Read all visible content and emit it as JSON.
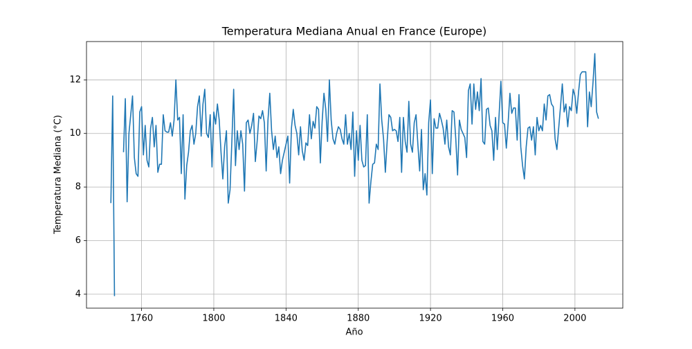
{
  "chart_data": {
    "type": "line",
    "title": "Temperatura Mediana Anual en France (Europe)",
    "x_label": "Año",
    "y_label": "Temperatura Mediana (°C)",
    "color": "#1f77b4",
    "grid": true,
    "xlim": [
      1729.5,
      2026.5
    ],
    "ylim": [
      3.48,
      13.43
    ],
    "xticks": [
      1760,
      1800,
      1840,
      1880,
      1920,
      1960,
      2000
    ],
    "yticks": [
      4,
      6,
      8,
      10,
      12
    ],
    "x": [
      1743,
      1744,
      1745,
      1746,
      1747,
      1748,
      1749,
      1750,
      1751,
      1752,
      1753,
      1754,
      1755,
      1756,
      1757,
      1758,
      1759,
      1760,
      1761,
      1762,
      1763,
      1764,
      1765,
      1766,
      1767,
      1768,
      1769,
      1770,
      1771,
      1772,
      1773,
      1774,
      1775,
      1776,
      1777,
      1778,
      1779,
      1780,
      1781,
      1782,
      1783,
      1784,
      1785,
      1786,
      1787,
      1788,
      1789,
      1790,
      1791,
      1792,
      1793,
      1794,
      1795,
      1796,
      1797,
      1798,
      1799,
      1800,
      1801,
      1802,
      1803,
      1804,
      1805,
      1806,
      1807,
      1808,
      1809,
      1810,
      1811,
      1812,
      1813,
      1814,
      1815,
      1816,
      1817,
      1818,
      1819,
      1820,
      1821,
      1822,
      1823,
      1824,
      1825,
      1826,
      1827,
      1828,
      1829,
      1830,
      1831,
      1832,
      1833,
      1834,
      1835,
      1836,
      1837,
      1838,
      1839,
      1840,
      1841,
      1842,
      1843,
      1844,
      1845,
      1846,
      1847,
      1848,
      1849,
      1850,
      1851,
      1852,
      1853,
      1854,
      1855,
      1856,
      1857,
      1858,
      1859,
      1860,
      1861,
      1862,
      1863,
      1864,
      1865,
      1866,
      1867,
      1868,
      1869,
      1870,
      1871,
      1872,
      1873,
      1874,
      1875,
      1876,
      1877,
      1878,
      1879,
      1880,
      1881,
      1882,
      1883,
      1884,
      1885,
      1886,
      1887,
      1888,
      1889,
      1890,
      1891,
      1892,
      1893,
      1894,
      1895,
      1896,
      1897,
      1898,
      1899,
      1900,
      1901,
      1902,
      1903,
      1904,
      1905,
      1906,
      1907,
      1908,
      1909,
      1910,
      1911,
      1912,
      1913,
      1914,
      1915,
      1916,
      1917,
      1918,
      1919,
      1920,
      1921,
      1922,
      1923,
      1924,
      1925,
      1926,
      1927,
      1928,
      1929,
      1930,
      1931,
      1932,
      1933,
      1934,
      1935,
      1936,
      1937,
      1938,
      1939,
      1940,
      1941,
      1942,
      1943,
      1944,
      1945,
      1946,
      1947,
      1948,
      1949,
      1950,
      1951,
      1952,
      1953,
      1954,
      1955,
      1956,
      1957,
      1958,
      1959,
      1960,
      1961,
      1962,
      1963,
      1964,
      1965,
      1966,
      1967,
      1968,
      1969,
      1970,
      1971,
      1972,
      1973,
      1974,
      1975,
      1976,
      1977,
      1978,
      1979,
      1980,
      1981,
      1982,
      1983,
      1984,
      1985,
      1986,
      1987,
      1988,
      1989,
      1990,
      1991,
      1992,
      1993,
      1994,
      1995,
      1996,
      1997,
      1998,
      1999,
      2000,
      2001,
      2002,
      2003,
      2004,
      2005,
      2006,
      2007,
      2008,
      2009,
      2010,
      2011,
      2012,
      2013
    ],
    "values": [
      7.4,
      11.4,
      3.93,
      null,
      null,
      null,
      null,
      9.3,
      11.3,
      7.45,
      10.0,
      10.7,
      11.4,
      9.1,
      8.5,
      8.4,
      10.8,
      11.0,
      9.2,
      10.3,
      9.0,
      8.75,
      10.2,
      10.6,
      9.5,
      10.3,
      8.55,
      8.85,
      8.85,
      10.7,
      10.1,
      10.05,
      10.05,
      10.4,
      9.9,
      10.5,
      12.0,
      10.5,
      10.6,
      8.5,
      10.7,
      7.55,
      8.8,
      9.3,
      10.1,
      10.3,
      9.6,
      10.0,
      11.0,
      11.4,
      9.9,
      11.1,
      11.65,
      10.0,
      9.85,
      10.7,
      8.75,
      10.8,
      10.35,
      11.1,
      10.5,
      9.3,
      8.3,
      9.5,
      10.1,
      7.4,
      7.9,
      9.7,
      11.65,
      8.8,
      10.1,
      9.4,
      10.1,
      9.6,
      7.85,
      10.4,
      10.5,
      10.0,
      10.3,
      10.75,
      8.95,
      9.7,
      10.65,
      10.55,
      10.85,
      10.4,
      8.6,
      10.5,
      11.5,
      10.1,
      9.4,
      9.9,
      9.1,
      9.5,
      8.5,
      9.0,
      9.3,
      9.6,
      9.9,
      8.15,
      10.2,
      10.9,
      10.3,
      10.0,
      9.2,
      10.25,
      9.35,
      9.0,
      9.65,
      9.55,
      10.7,
      9.8,
      10.45,
      10.2,
      11.0,
      10.9,
      8.9,
      10.45,
      11.5,
      10.9,
      9.7,
      12.0,
      10.5,
      9.8,
      9.6,
      10.0,
      10.25,
      10.15,
      9.8,
      9.6,
      10.7,
      9.6,
      10.0,
      9.4,
      10.8,
      8.4,
      10.1,
      9.0,
      10.3,
      9.0,
      8.75,
      8.8,
      10.7,
      7.4,
      8.2,
      8.85,
      8.9,
      9.6,
      9.4,
      11.85,
      10.5,
      9.8,
      8.55,
      9.7,
      10.7,
      10.6,
      10.1,
      10.15,
      10.1,
      9.7,
      10.6,
      8.55,
      10.6,
      9.7,
      9.3,
      11.2,
      9.6,
      9.3,
      10.4,
      10.7,
      9.6,
      8.6,
      10.15,
      7.9,
      8.5,
      7.7,
      10.4,
      11.25,
      8.5,
      10.55,
      10.2,
      10.2,
      10.75,
      10.5,
      10.2,
      9.6,
      10.5,
      9.5,
      9.2,
      10.85,
      10.8,
      9.8,
      8.45,
      10.5,
      10.15,
      10.0,
      9.85,
      9.1,
      11.6,
      11.85,
      10.35,
      11.85,
      10.9,
      11.55,
      10.85,
      12.05,
      9.7,
      9.6,
      10.9,
      10.95,
      10.3,
      10.1,
      9.0,
      10.6,
      9.4,
      10.7,
      11.95,
      10.4,
      10.35,
      9.45,
      10.4,
      11.5,
      10.75,
      10.95,
      10.95,
      9.75,
      11.45,
      9.5,
      8.8,
      8.3,
      9.5,
      10.2,
      10.25,
      9.75,
      10.25,
      9.2,
      10.6,
      10.1,
      10.3,
      10.1,
      11.1,
      10.5,
      11.4,
      11.45,
      11.1,
      11.0,
      9.8,
      9.4,
      10.2,
      11.0,
      11.85,
      10.8,
      11.1,
      10.25,
      11.0,
      10.85,
      11.65,
      11.4,
      10.75,
      11.55,
      12.2,
      12.3,
      12.3,
      12.3,
      10.25,
      11.55,
      11.0,
      11.9,
      12.98,
      10.8,
      10.55
    ]
  }
}
